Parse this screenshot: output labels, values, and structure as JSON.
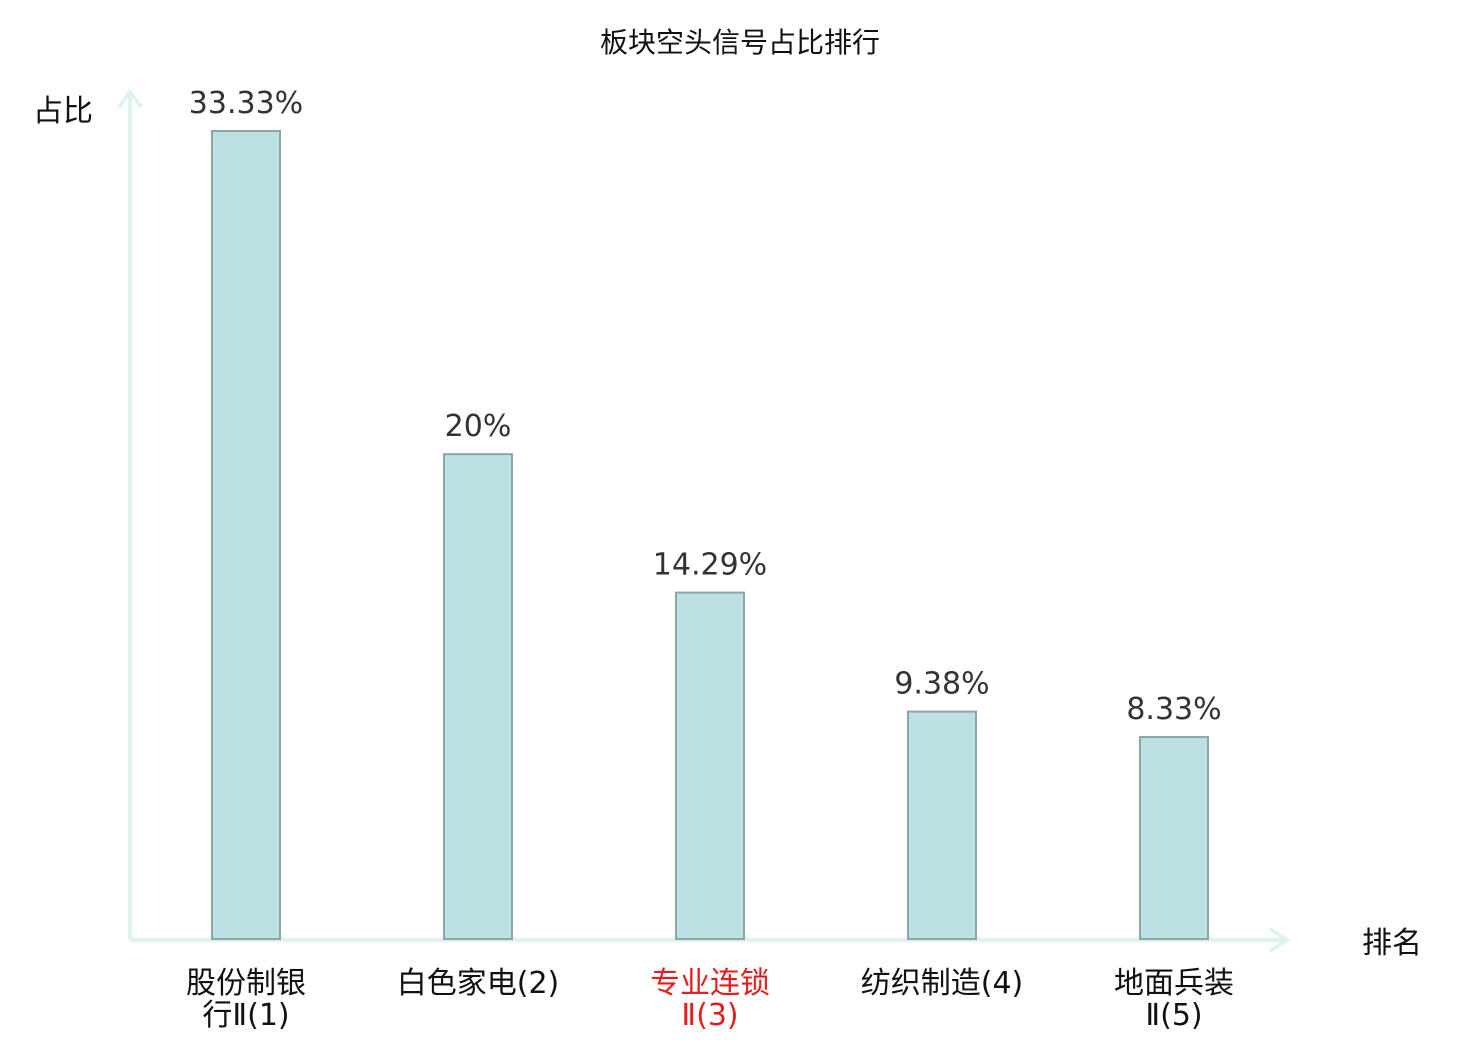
{
  "chart_data": {
    "type": "bar",
    "title": "板块空头信号占比排行",
    "ylabel": "占比",
    "xlabel": "排名",
    "ylim": [
      0,
      34.3
    ],
    "categories": [
      {
        "lines": [
          "股份制银",
          "行Ⅱ(1)"
        ],
        "name": "股份制银行Ⅱ",
        "rank": "(1)"
      },
      {
        "lines": [
          "白色家电(2)"
        ],
        "name": "白色家电",
        "rank": "(2)"
      },
      {
        "lines": [
          "专业连锁",
          "Ⅱ(3)"
        ],
        "name": "专业连锁Ⅱ",
        "rank": "(3)"
      },
      {
        "lines": [
          "纺织制造(4)"
        ],
        "name": "纺织制造",
        "rank": "(4)"
      },
      {
        "lines": [
          "地面兵装",
          "Ⅱ(5)"
        ],
        "name": "地面兵装Ⅱ",
        "rank": "(5)"
      }
    ],
    "values": [
      33.33,
      20,
      14.29,
      9.38,
      8.33
    ],
    "value_labels": [
      "33.33%",
      "20%",
      "14.29%",
      "9.38%",
      "8.33%"
    ],
    "highlight_index": 2,
    "colors": {
      "bar_fill": "#bde0e2",
      "bar_stroke": "#8aa6a8",
      "axis": "#e0f2ef",
      "highlight_text": "#e02020"
    },
    "grid": false,
    "legend": "none"
  }
}
